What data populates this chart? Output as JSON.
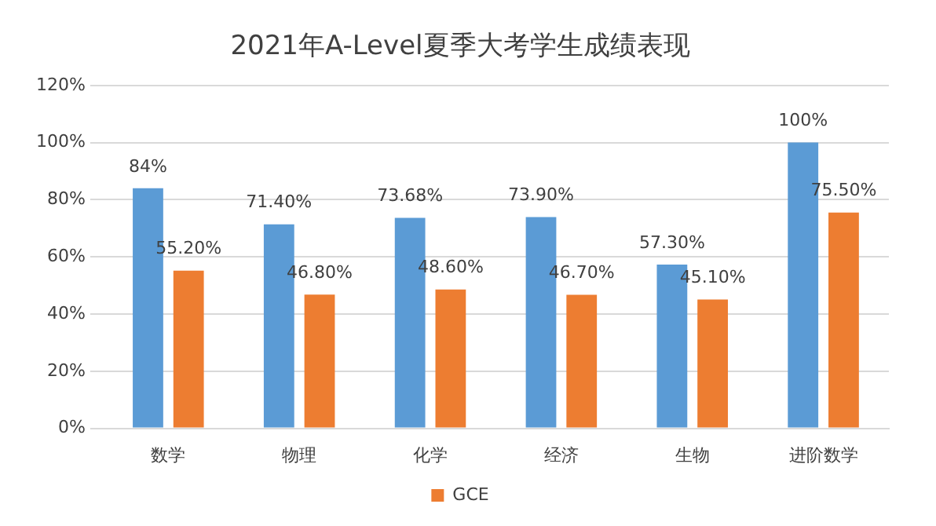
{
  "chart_data": {
    "type": "bar",
    "title": "2021年A-Level夏季大考学生成绩表现",
    "categories": [
      "数学",
      "物理",
      "化学",
      "经济",
      "生物",
      "进阶数学"
    ],
    "series": [
      {
        "color": "#5b9bd5",
        "values": [
          84,
          71.4,
          73.68,
          73.9,
          57.3,
          100
        ],
        "value_labels": [
          "84%",
          "71.40%",
          "73.68%",
          "73.90%",
          "57.30%",
          "100%"
        ]
      },
      {
        "name": "GCE",
        "color": "#ed7d31",
        "values": [
          55.2,
          46.8,
          48.6,
          46.7,
          45.1,
          75.5
        ],
        "value_labels": [
          "55.20%",
          "46.80%",
          "48.60%",
          "46.70%",
          "45.10%",
          "75.50%"
        ]
      }
    ],
    "ylim": [
      0,
      120
    ],
    "yticks": [
      {
        "value": 0,
        "label": "0%"
      },
      {
        "value": 20,
        "label": "20%"
      },
      {
        "value": 40,
        "label": "40%"
      },
      {
        "value": 60,
        "label": "60%"
      },
      {
        "value": 80,
        "label": "80%"
      },
      {
        "value": 100,
        "label": "100%"
      },
      {
        "value": 120,
        "label": "120%"
      }
    ],
    "grid": "y",
    "legend": "bottom"
  }
}
